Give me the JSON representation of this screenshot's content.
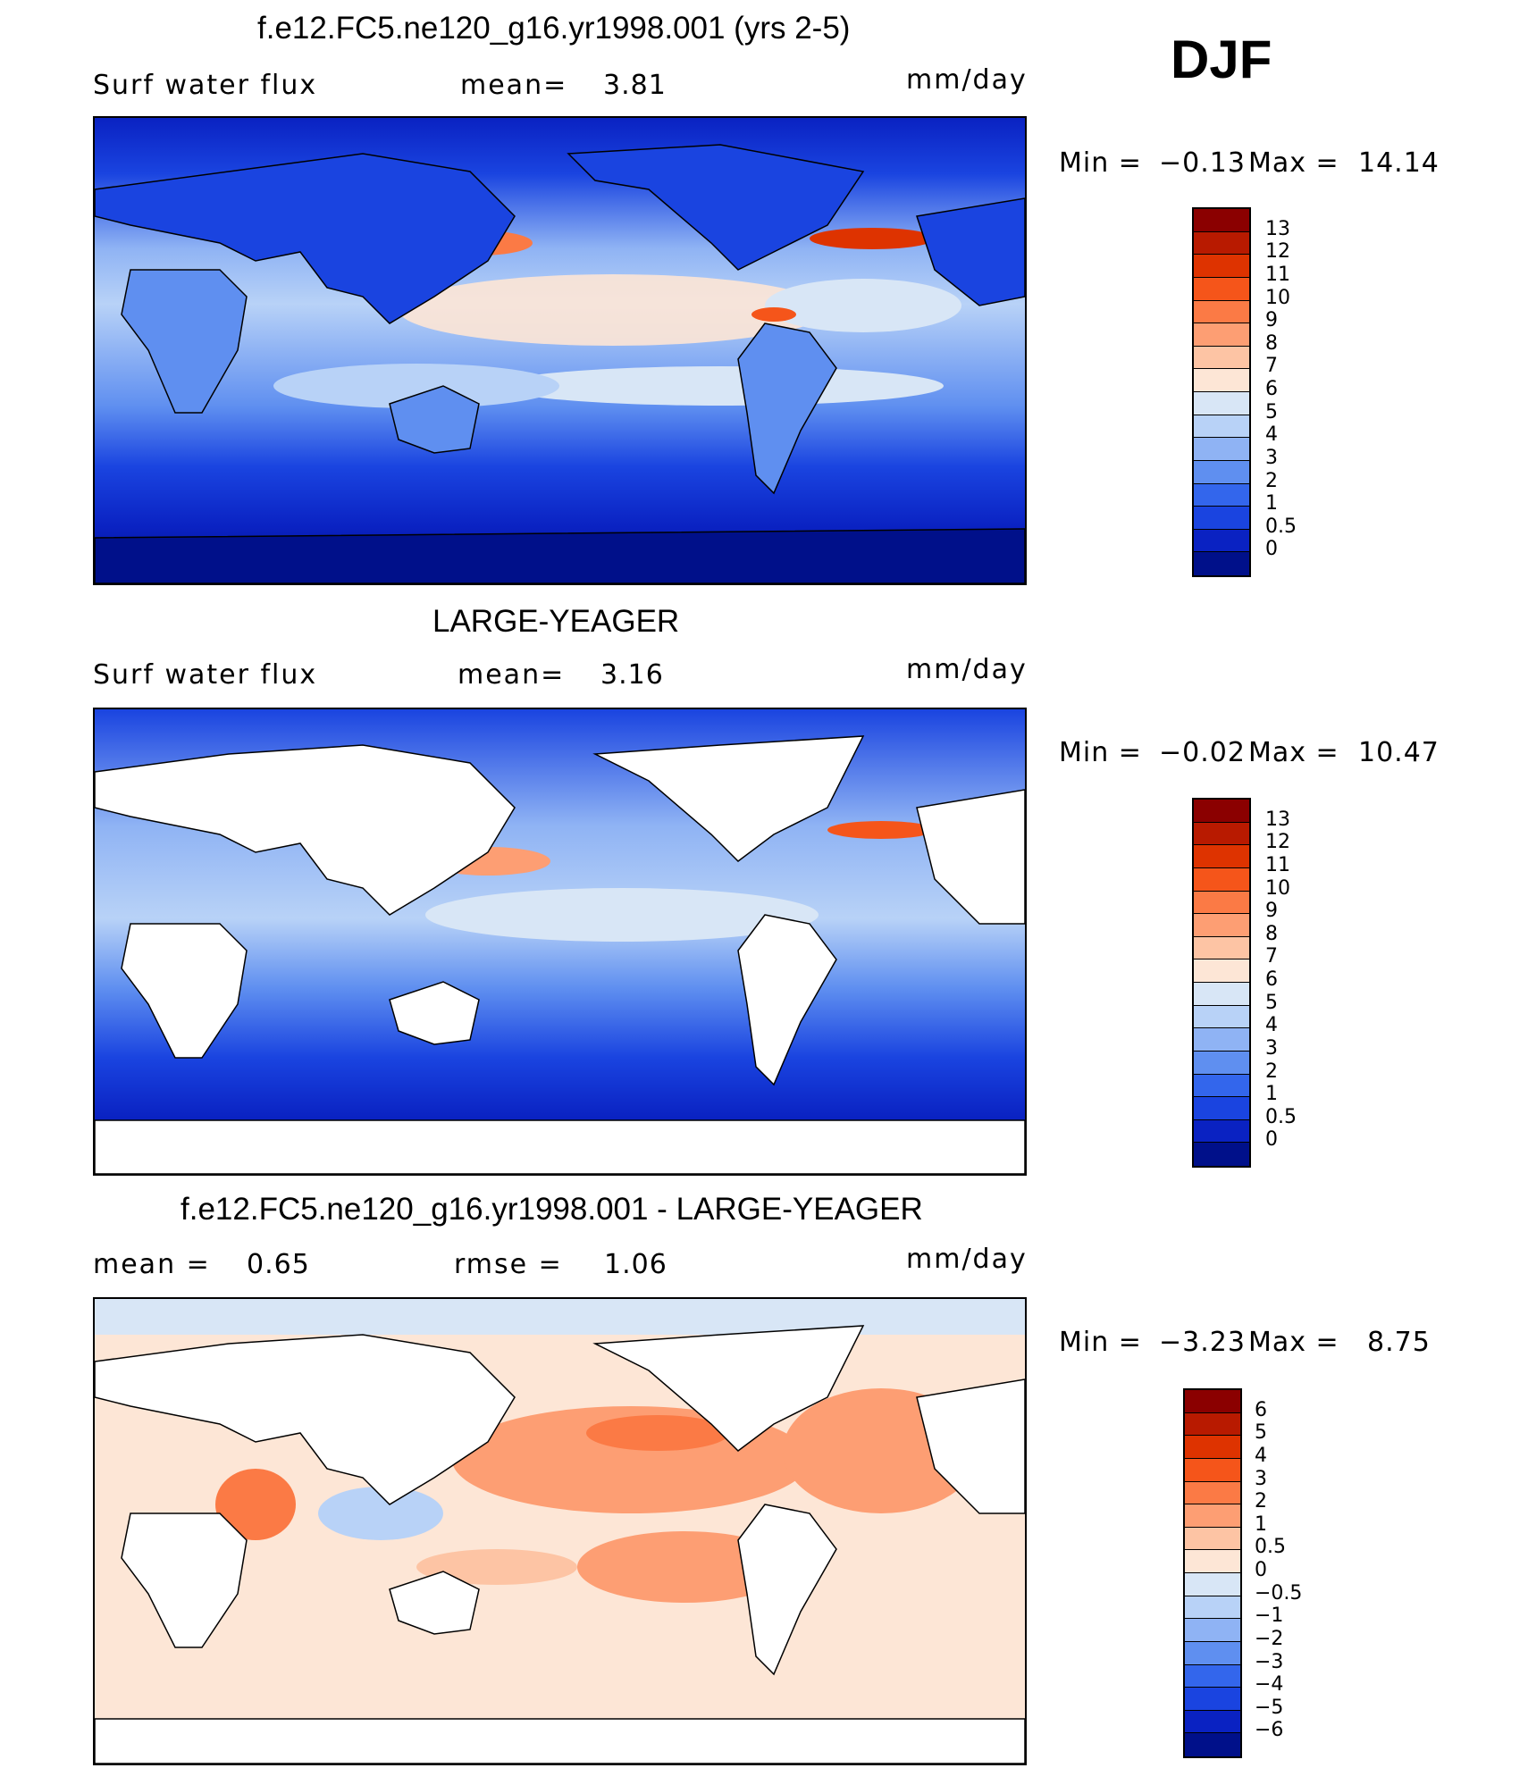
{
  "season": "DJF",
  "panels": [
    {
      "id": "model",
      "title": "f.e12.FC5.ne120_g16.yr1998.001 (yrs 2-5)",
      "left_label": "Surf  water  flux",
      "stat_label": "mean=",
      "stat_value": "3.81",
      "stat2_label": "",
      "stat2_value": "",
      "units": "mm/day",
      "minmax": {
        "min_label": "Min  =",
        "min": "−0.13",
        "max_label": "Max  =",
        "max": "14.14"
      },
      "levels": [
        "13",
        "12",
        "11",
        "10",
        "9",
        "8",
        "7",
        "6",
        "5",
        "4",
        "3",
        "2",
        "1",
        "0.5",
        "0"
      ],
      "colors": [
        "#8b0000",
        "#b81a00",
        "#de3300",
        "#f5551a",
        "#fb7a45",
        "#fd9e73",
        "#fdc4a4",
        "#fde6d6",
        "#d8e6f6",
        "#b8d2f7",
        "#8fb3f4",
        "#5f8ff0",
        "#3366ec",
        "#1a44e0",
        "#0a22c2",
        "#00108a"
      ],
      "map_kind": "full"
    },
    {
      "id": "obs",
      "title": "LARGE-YEAGER",
      "left_label": "Surf  water  flux",
      "stat_label": "mean=",
      "stat_value": "3.16",
      "stat2_label": "",
      "stat2_value": "",
      "units": "mm/day",
      "minmax": {
        "min_label": "Min  =",
        "min": "−0.02",
        "max_label": "Max  =",
        "max": "10.47"
      },
      "levels": [
        "13",
        "12",
        "11",
        "10",
        "9",
        "8",
        "7",
        "6",
        "5",
        "4",
        "3",
        "2",
        "1",
        "0.5",
        "0"
      ],
      "colors": [
        "#8b0000",
        "#b81a00",
        "#de3300",
        "#f5551a",
        "#fb7a45",
        "#fd9e73",
        "#fdc4a4",
        "#fde6d6",
        "#d8e6f6",
        "#b8d2f7",
        "#8fb3f4",
        "#5f8ff0",
        "#3366ec",
        "#1a44e0",
        "#0a22c2",
        "#00108a"
      ],
      "map_kind": "ocean"
    },
    {
      "id": "diff",
      "title": "f.e12.FC5.ne120_g16.yr1998.001 - LARGE-YEAGER",
      "left_label": "mean  =",
      "stat_label": "",
      "stat_value": "0.65",
      "stat2_label": "rmse  =",
      "stat2_value": "1.06",
      "units": "mm/day",
      "minmax": {
        "min_label": "Min  =",
        "min": "−3.23",
        "max_label": "Max  =",
        "max": "8.75"
      },
      "levels": [
        "6",
        "5",
        "4",
        "3",
        "2",
        "1",
        "0.5",
        "0",
        "−0.5",
        "−1",
        "−2",
        "−3",
        "−4",
        "−5",
        "−6"
      ],
      "colors": [
        "#8b0000",
        "#b81a00",
        "#de3300",
        "#f5551a",
        "#fb7a45",
        "#fd9e73",
        "#fdc4a4",
        "#fde6d6",
        "#d8e6f6",
        "#b8d2f7",
        "#8fb3f4",
        "#5f8ff0",
        "#3366ec",
        "#1a44e0",
        "#0a22c2",
        "#00108a"
      ],
      "map_kind": "diff"
    }
  ]
}
